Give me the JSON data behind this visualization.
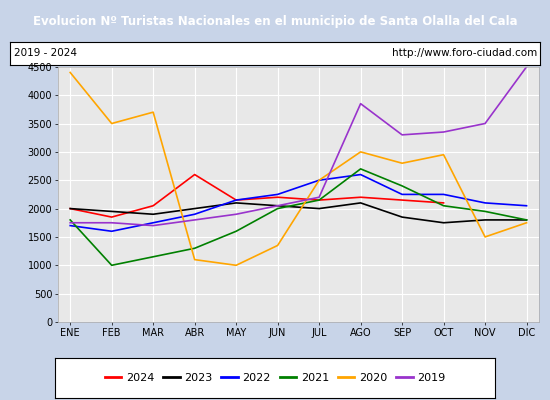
{
  "title": "Evolucion Nº Turistas Nacionales en el municipio de Santa Olalla del Cala",
  "subtitle_left": "2019 - 2024",
  "subtitle_right": "http://www.foro-ciudad.com",
  "title_bgcolor": "#4d79c7",
  "title_color": "white",
  "fig_bgcolor": "#c8d4e8",
  "plot_bgcolor": "#e8e8e8",
  "months": [
    "ENE",
    "FEB",
    "MAR",
    "ABR",
    "MAY",
    "JUN",
    "JUL",
    "AGO",
    "SEP",
    "OCT",
    "NOV",
    "DIC"
  ],
  "ylim": [
    0,
    4500
  ],
  "yticks": [
    0,
    500,
    1000,
    1500,
    2000,
    2500,
    3000,
    3500,
    4000,
    4500
  ],
  "series": {
    "2024": {
      "color": "red",
      "data": [
        2000,
        1850,
        2050,
        2600,
        2150,
        2200,
        2150,
        2200,
        2150,
        2100,
        null,
        null
      ]
    },
    "2023": {
      "color": "black",
      "data": [
        2000,
        1950,
        1900,
        2000,
        2100,
        2050,
        2000,
        2100,
        1850,
        1750,
        1800,
        1800
      ]
    },
    "2022": {
      "color": "blue",
      "data": [
        1700,
        1600,
        1750,
        1900,
        2150,
        2250,
        2500,
        2600,
        2250,
        2250,
        2100,
        2050
      ]
    },
    "2021": {
      "color": "green",
      "data": [
        1800,
        1000,
        1150,
        1300,
        1600,
        2000,
        2150,
        2700,
        2400,
        2050,
        1950,
        1800
      ]
    },
    "2020": {
      "color": "orange",
      "data": [
        4400,
        3500,
        3700,
        1100,
        1000,
        1350,
        2500,
        3000,
        2800,
        2950,
        1500,
        1750
      ]
    },
    "2019": {
      "color": "#9933cc",
      "data": [
        1750,
        1750,
        1700,
        1800,
        1900,
        2050,
        2200,
        3850,
        3300,
        3350,
        3500,
        4500
      ]
    }
  },
  "legend_order": [
    "2024",
    "2023",
    "2022",
    "2021",
    "2020",
    "2019"
  ]
}
